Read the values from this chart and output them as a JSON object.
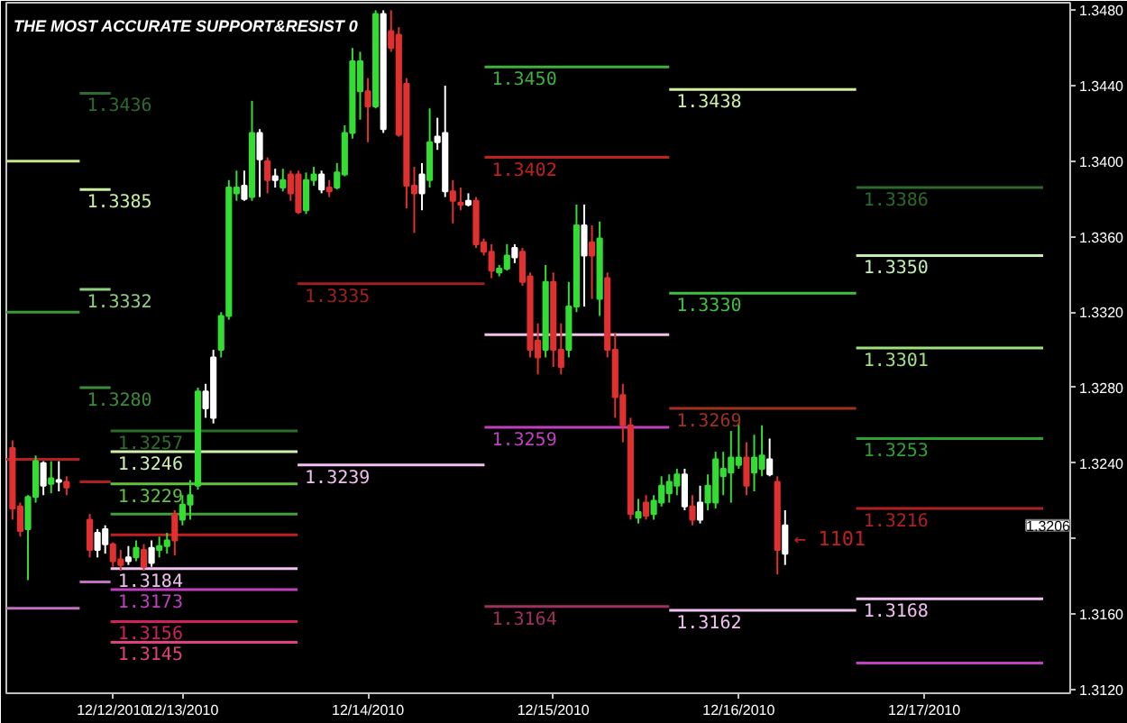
{
  "chart_data": {
    "type": "candlestick",
    "title": "THE MOST ACCURATE SUPPORT&RESIST 0",
    "xlim": [
      "2010-12-12T01:12",
      "2010-12-17T18:54"
    ],
    "ylim": [
      1.3118,
      1.3484
    ],
    "xticks": [
      {
        "value": "2010-12-12T15:00",
        "label": "12/12/2010"
      },
      {
        "value": "2010-12-13T00:00",
        "label": "12/13/2010"
      },
      {
        "value": "2010-12-14T00:00",
        "label": "12/14/2010"
      },
      {
        "value": "2010-12-15T00:00",
        "label": "12/15/2010"
      },
      {
        "value": "2010-12-16T00:00",
        "label": "12/16/2010"
      },
      {
        "value": "2010-12-17T00:00",
        "label": "12/17/2010"
      }
    ],
    "yticks": [
      {
        "value": 1.312,
        "label": "1.3120"
      },
      {
        "value": 1.316,
        "label": "1.3160"
      },
      {
        "value": 1.32,
        "label": null
      },
      {
        "value": 1.324,
        "label": "1.3240"
      },
      {
        "value": 1.328,
        "label": "1.3280"
      },
      {
        "value": 1.332,
        "label": "1.3320"
      },
      {
        "value": 1.336,
        "label": "1.3360"
      },
      {
        "value": 1.34,
        "label": "1.3400"
      },
      {
        "value": 1.344,
        "label": "1.3440"
      },
      {
        "value": 1.348,
        "label": "1.3480"
      }
    ],
    "x": [
      "2010-12-12T02:00",
      "2010-12-12T03:00",
      "2010-12-12T04:00",
      "2010-12-12T05:00",
      "2010-12-12T06:00",
      "2010-12-12T07:00",
      "2010-12-12T08:00",
      "2010-12-12T09:00",
      "2010-12-12T12:00",
      "2010-12-12T13:00",
      "2010-12-12T14:00",
      "2010-12-12T15:00",
      "2010-12-12T16:00",
      "2010-12-12T17:00",
      "2010-12-12T18:00",
      "2010-12-12T19:00",
      "2010-12-12T20:00",
      "2010-12-12T21:00",
      "2010-12-12T22:00",
      "2010-12-12T23:00",
      "2010-12-13T00:00",
      "2010-12-13T01:00",
      "2010-12-13T02:00",
      "2010-12-13T03:00",
      "2010-12-13T04:00",
      "2010-12-13T05:00",
      "2010-12-13T06:00",
      "2010-12-13T07:00",
      "2010-12-13T08:00",
      "2010-12-13T09:00",
      "2010-12-13T10:00",
      "2010-12-13T11:00",
      "2010-12-13T12:00",
      "2010-12-13T13:00",
      "2010-12-13T14:00",
      "2010-12-13T15:00",
      "2010-12-13T16:00",
      "2010-12-13T17:00",
      "2010-12-13T18:00",
      "2010-12-13T19:00",
      "2010-12-13T20:00",
      "2010-12-13T21:00",
      "2010-12-13T22:00",
      "2010-12-13T23:00",
      "2010-12-14T00:00",
      "2010-12-14T01:00",
      "2010-12-14T02:00",
      "2010-12-14T03:00",
      "2010-12-14T04:00",
      "2010-12-14T05:00",
      "2010-12-14T06:00",
      "2010-12-14T07:00",
      "2010-12-14T08:00",
      "2010-12-14T09:00",
      "2010-12-14T10:00",
      "2010-12-14T11:00",
      "2010-12-14T12:00",
      "2010-12-14T13:00",
      "2010-12-14T14:00",
      "2010-12-14T15:00",
      "2010-12-14T16:00",
      "2010-12-14T17:00",
      "2010-12-14T18:00",
      "2010-12-14T19:00",
      "2010-12-14T20:00",
      "2010-12-14T21:00",
      "2010-12-14T22:00",
      "2010-12-14T23:00",
      "2010-12-15T00:00",
      "2010-12-15T01:00",
      "2010-12-15T02:00",
      "2010-12-15T03:00",
      "2010-12-15T04:00",
      "2010-12-15T05:00",
      "2010-12-15T06:00",
      "2010-12-15T07:00",
      "2010-12-15T08:00",
      "2010-12-15T09:00",
      "2010-12-15T10:00",
      "2010-12-15T11:00",
      "2010-12-15T12:00",
      "2010-12-15T13:00",
      "2010-12-15T14:00",
      "2010-12-15T15:00",
      "2010-12-15T16:00",
      "2010-12-15T17:00",
      "2010-12-15T18:00",
      "2010-12-15T19:00",
      "2010-12-15T20:00",
      "2010-12-15T21:00",
      "2010-12-15T22:00",
      "2010-12-15T23:00",
      "2010-12-16T00:00",
      "2010-12-16T01:00",
      "2010-12-16T02:00",
      "2010-12-16T03:00",
      "2010-12-16T04:00",
      "2010-12-16T05:00",
      "2010-12-16T06:00"
    ],
    "ohlc": [
      [
        1.3248,
        1.3252,
        1.321,
        1.3216
      ],
      [
        1.3217,
        1.3219,
        1.3201,
        1.3204
      ],
      [
        1.3205,
        1.3223,
        1.3178,
        1.3222
      ],
      [
        1.3222,
        1.3244,
        1.3219,
        1.3241
      ],
      [
        1.3228,
        1.3241,
        1.3223,
        1.324
      ],
      [
        1.3229,
        1.3241,
        1.3224,
        1.3232
      ],
      [
        1.323,
        1.3241,
        1.3225,
        1.3231
      ],
      [
        1.323,
        1.3233,
        1.3223,
        1.3227
      ],
      [
        1.321,
        1.3213,
        1.319,
        1.3194
      ],
      [
        1.3194,
        1.3205,
        1.319,
        1.3203
      ],
      [
        1.3197,
        1.3207,
        1.3192,
        1.3205
      ],
      [
        1.3197,
        1.3198,
        1.3185,
        1.3188
      ],
      [
        1.3189,
        1.3194,
        1.3183,
        1.3186
      ],
      [
        1.3188,
        1.3196,
        1.3186,
        1.319
      ],
      [
        1.319,
        1.3199,
        1.3188,
        1.3195
      ],
      [
        1.3194,
        1.3197,
        1.3183,
        1.3185
      ],
      [
        1.3187,
        1.3199,
        1.3185,
        1.3195
      ],
      [
        1.3194,
        1.3201,
        1.319,
        1.3196
      ],
      [
        1.3196,
        1.3203,
        1.3192,
        1.3199
      ],
      [
        1.3213,
        1.3215,
        1.3191,
        1.3199
      ],
      [
        1.321,
        1.3223,
        1.3207,
        1.3218
      ],
      [
        1.3218,
        1.3231,
        1.321,
        1.3223
      ],
      [
        1.3228,
        1.328,
        1.3226,
        1.3278
      ],
      [
        1.3269,
        1.3282,
        1.3264,
        1.3278
      ],
      [
        1.3264,
        1.33,
        1.3261,
        1.3296
      ],
      [
        1.33,
        1.332,
        1.3296,
        1.3318
      ],
      [
        1.3318,
        1.339,
        1.3316,
        1.3386
      ],
      [
        1.3383,
        1.3395,
        1.3379,
        1.3386
      ],
      [
        1.338,
        1.3395,
        1.3379,
        1.3387
      ],
      [
        1.3381,
        1.3432,
        1.3379,
        1.3415
      ],
      [
        1.3401,
        1.3417,
        1.3381,
        1.3415
      ],
      [
        1.34,
        1.3402,
        1.3383,
        1.339
      ],
      [
        1.339,
        1.3396,
        1.3386,
        1.3392
      ],
      [
        1.3386,
        1.3396,
        1.3384,
        1.339
      ],
      [
        1.3393,
        1.3395,
        1.3379,
        1.3383
      ],
      [
        1.3393,
        1.3395,
        1.3372,
        1.3373
      ],
      [
        1.3374,
        1.3394,
        1.3372,
        1.339
      ],
      [
        1.339,
        1.3397,
        1.3387,
        1.3393
      ],
      [
        1.3385,
        1.3395,
        1.3383,
        1.3393
      ],
      [
        1.3386,
        1.339,
        1.3381,
        1.3384
      ],
      [
        1.3386,
        1.3399,
        1.3385,
        1.3394
      ],
      [
        1.3393,
        1.3419,
        1.3392,
        1.3415
      ],
      [
        1.3415,
        1.346,
        1.3412,
        1.3453
      ],
      [
        1.3437,
        1.3458,
        1.3422,
        1.3453
      ],
      [
        1.3437,
        1.3444,
        1.341,
        1.3429
      ],
      [
        1.3429,
        1.348,
        1.3428,
        1.3478
      ],
      [
        1.3417,
        1.348,
        1.3415,
        1.3478
      ],
      [
        1.3469,
        1.348,
        1.3458,
        1.346
      ],
      [
        1.3467,
        1.3471,
        1.3413,
        1.3414
      ],
      [
        1.3441,
        1.3444,
        1.3375,
        1.3387
      ],
      [
        1.3387,
        1.3397,
        1.3362,
        1.3383
      ],
      [
        1.3383,
        1.3399,
        1.3374,
        1.3393
      ],
      [
        1.339,
        1.3428,
        1.3386,
        1.341
      ],
      [
        1.341,
        1.3423,
        1.3406,
        1.3413
      ],
      [
        1.3384,
        1.344,
        1.3381,
        1.3415
      ],
      [
        1.3384,
        1.339,
        1.3367,
        1.3379
      ],
      [
        1.3378,
        1.3386,
        1.3374,
        1.3377
      ],
      [
        1.3377,
        1.3383,
        1.3376,
        1.3379
      ],
      [
        1.3379,
        1.3381,
        1.3354,
        1.3356
      ],
      [
        1.3357,
        1.3359,
        1.335,
        1.3352
      ],
      [
        1.3352,
        1.3356,
        1.3338,
        1.3342
      ],
      [
        1.3341,
        1.3345,
        1.3339,
        1.3343
      ],
      [
        1.3343,
        1.3356,
        1.3342,
        1.335
      ],
      [
        1.3349,
        1.3356,
        1.3346,
        1.3354
      ],
      [
        1.3352,
        1.3354,
        1.3334,
        1.3336
      ],
      [
        1.3339,
        1.3341,
        1.3296,
        1.33
      ],
      [
        1.3305,
        1.3314,
        1.3287,
        1.3296
      ],
      [
        1.33,
        1.3345,
        1.3296,
        1.3336
      ],
      [
        1.3336,
        1.3341,
        1.3291,
        1.33
      ],
      [
        1.33,
        1.3314,
        1.3287,
        1.3291
      ],
      [
        1.33,
        1.3336,
        1.3296,
        1.3323
      ],
      [
        1.3323,
        1.3377,
        1.332,
        1.3366
      ],
      [
        1.335,
        1.3377,
        1.3323,
        1.3366
      ],
      [
        1.3357,
        1.3366,
        1.3327,
        1.335
      ],
      [
        1.3327,
        1.3368,
        1.3318,
        1.3359
      ],
      [
        1.3338,
        1.3341,
        1.3296,
        1.33
      ],
      [
        1.33,
        1.3309,
        1.3264,
        1.3275
      ],
      [
        1.3276,
        1.3282,
        1.3251,
        1.326
      ],
      [
        1.326,
        1.3264,
        1.321,
        1.3213
      ],
      [
        1.3211,
        1.3221,
        1.3208,
        1.3214
      ],
      [
        1.3219,
        1.3223,
        1.321,
        1.3212
      ],
      [
        1.3213,
        1.3223,
        1.321,
        1.322
      ],
      [
        1.3219,
        1.3233,
        1.3217,
        1.3228
      ],
      [
        1.3224,
        1.3234,
        1.3219,
        1.323
      ],
      [
        1.3228,
        1.3237,
        1.3223,
        1.3234
      ],
      [
        1.3217,
        1.3237,
        1.3215,
        1.3234
      ],
      [
        1.3217,
        1.3223,
        1.3207,
        1.321
      ],
      [
        1.321,
        1.3228,
        1.3208,
        1.3219
      ],
      [
        1.3219,
        1.3234,
        1.3215,
        1.3228
      ],
      [
        1.3219,
        1.3246,
        1.3216,
        1.3242
      ],
      [
        1.3233,
        1.3246,
        1.3223,
        1.3237
      ],
      [
        1.3235,
        1.3257,
        1.3219,
        1.3243
      ],
      [
        1.3239,
        1.3261,
        1.3237,
        1.3243
      ],
      [
        1.3243,
        1.3251,
        1.3223,
        1.3228
      ],
      [
        1.3235,
        1.3255,
        1.3225,
        1.3243
      ],
      [
        1.3237,
        1.326,
        1.3233,
        1.3244
      ],
      [
        1.3234,
        1.3253,
        1.3233,
        1.3242
      ],
      [
        1.323,
        1.3233,
        1.3181,
        1.3194
      ],
      [
        1.3192,
        1.3215,
        1.3186,
        1.3207
      ]
    ],
    "colors": [
      "#e03030",
      "#e03030",
      "#33dd33",
      "#33dd33",
      "#ffffff",
      "#33dd33",
      "#ffffff",
      "#e03030",
      "#e03030",
      "#ffffff",
      "#ffffff",
      "#e03030",
      "#e03030",
      "#ffffff",
      "#33dd33",
      "#e03030",
      "#ffffff",
      "#33dd33",
      "#33dd33",
      "#e03030",
      "#33dd33",
      "#33dd33",
      "#33dd33",
      "#ffffff",
      "#ffffff",
      "#33dd33",
      "#33dd33",
      "#33dd33",
      "#ffffff",
      "#33dd33",
      "#ffffff",
      "#e03030",
      "#ffffff",
      "#33dd33",
      "#e03030",
      "#e03030",
      "#33dd33",
      "#33dd33",
      "#ffffff",
      "#e03030",
      "#33dd33",
      "#33dd33",
      "#33dd33",
      "#33dd33",
      "#e03030",
      "#33dd33",
      "#ffffff",
      "#e03030",
      "#e03030",
      "#e03030",
      "#e03030",
      "#ffffff",
      "#33dd33",
      "#ffffff",
      "#ffffff",
      "#e03030",
      "#e03030",
      "#ffffff",
      "#e03030",
      "#e03030",
      "#e03030",
      "#33dd33",
      "#33dd33",
      "#ffffff",
      "#e03030",
      "#e03030",
      "#e03030",
      "#33dd33",
      "#e03030",
      "#e03030",
      "#33dd33",
      "#33dd33",
      "#ffffff",
      "#e03030",
      "#33dd33",
      "#e03030",
      "#e03030",
      "#e03030",
      "#e03030",
      "#33dd33",
      "#e03030",
      "#33dd33",
      "#33dd33",
      "#33dd33",
      "#33dd33",
      "#ffffff",
      "#e03030",
      "#ffffff",
      "#33dd33",
      "#33dd33",
      "#33dd33",
      "#33dd33",
      "#33dd33",
      "#e03030",
      "#33dd33",
      "#33dd33",
      "#ffffff",
      "#e03030",
      "#ffffff"
    ],
    "series": [
      {
        "type": "line",
        "color": "#c8e68c",
        "x": [
          "2010-12-12T01:12",
          "2010-12-12T10:42"
        ],
        "values": [
          1.34,
          1.34
        ]
      },
      {
        "type": "line",
        "color": "#3a9a3a",
        "x": [
          "2010-12-12T01:12",
          "2010-12-12T10:42"
        ],
        "values": [
          1.332,
          1.332
        ]
      },
      {
        "type": "line",
        "color": "#b02020",
        "x": [
          "2010-12-12T01:12",
          "2010-12-12T10:42"
        ],
        "values": [
          1.3242,
          1.3242
        ]
      },
      {
        "type": "line",
        "color": "#c070c0",
        "x": [
          "2010-12-12T01:12",
          "2010-12-12T10:42"
        ],
        "values": [
          1.3163,
          1.3163
        ]
      },
      {
        "type": "line",
        "name": "1.3436",
        "color": "#2e6b2e",
        "x": [
          "2010-12-12T10:42",
          "2010-12-12T14:42"
        ],
        "values": [
          1.3436,
          1.3436
        ]
      },
      {
        "type": "line",
        "name": "1.3385",
        "color": "#c8f0a0",
        "x": [
          "2010-12-12T10:42",
          "2010-12-12T14:42"
        ],
        "values": [
          1.3385,
          1.3385
        ]
      },
      {
        "type": "line",
        "name": "1.3332",
        "color": "#8fd080",
        "x": [
          "2010-12-12T10:42",
          "2010-12-12T14:42"
        ],
        "values": [
          1.3332,
          1.3332
        ]
      },
      {
        "type": "line",
        "name": "1.3280",
        "color": "#3c8c3c",
        "x": [
          "2010-12-12T10:42",
          "2010-12-12T14:42"
        ],
        "values": [
          1.328,
          1.328
        ]
      },
      {
        "type": "line",
        "color": "#b02020",
        "x": [
          "2010-12-12T10:42",
          "2010-12-12T14:42"
        ],
        "values": [
          1.323,
          1.323
        ]
      },
      {
        "type": "line",
        "color": "#c070c0",
        "x": [
          "2010-12-12T10:42",
          "2010-12-12T14:42"
        ],
        "values": [
          1.3177,
          1.3177
        ]
      },
      {
        "type": "line",
        "name": "1.3257",
        "color": "#2a6e2a",
        "x": [
          "2010-12-12T14:42",
          "2010-12-13T14:54"
        ],
        "values": [
          1.3257,
          1.3257
        ]
      },
      {
        "type": "line",
        "name": "1.3246",
        "color": "#d0f0b0",
        "x": [
          "2010-12-12T14:42",
          "2010-12-13T14:54"
        ],
        "values": [
          1.3246,
          1.3246
        ]
      },
      {
        "type": "line",
        "name": "1.3229",
        "color": "#60c040",
        "x": [
          "2010-12-12T14:42",
          "2010-12-13T14:54"
        ],
        "values": [
          1.3229,
          1.3229
        ]
      },
      {
        "type": "line",
        "color": "#40a040",
        "x": [
          "2010-12-12T14:42",
          "2010-12-13T14:54"
        ],
        "values": [
          1.3213,
          1.3213
        ]
      },
      {
        "type": "line",
        "color": "#c02020",
        "x": [
          "2010-12-12T14:42",
          "2010-12-13T14:54"
        ],
        "values": [
          1.3202,
          1.3202
        ]
      },
      {
        "type": "line",
        "name": "1.3184",
        "color": "#f0c0f0",
        "x": [
          "2010-12-12T14:42",
          "2010-12-13T14:54"
        ],
        "values": [
          1.3184,
          1.3184
        ]
      },
      {
        "type": "line",
        "name": "1.3173",
        "color": "#c040c0",
        "x": [
          "2010-12-12T14:42",
          "2010-12-13T14:54"
        ],
        "values": [
          1.3173,
          1.3173
        ]
      },
      {
        "type": "line",
        "name": "1.3156",
        "color": "#d02060",
        "x": [
          "2010-12-12T14:42",
          "2010-12-13T14:54"
        ],
        "values": [
          1.3156,
          1.3156
        ]
      },
      {
        "type": "line",
        "name": "1.3145",
        "color": "#e04080",
        "x": [
          "2010-12-12T14:42",
          "2010-12-13T14:54"
        ],
        "values": [
          1.3145,
          1.3145
        ]
      },
      {
        "type": "line",
        "name": "1.3335",
        "color": "#a02020",
        "x": [
          "2010-12-13T14:54",
          "2010-12-14T15:06"
        ],
        "values": [
          1.3335,
          1.3335
        ]
      },
      {
        "type": "line",
        "name": "1.3239",
        "color": "#f0c0f0",
        "x": [
          "2010-12-13T14:54",
          "2010-12-14T15:06"
        ],
        "values": [
          1.3239,
          1.3239
        ]
      },
      {
        "type": "line",
        "name": "1.3450",
        "color": "#40b040",
        "x": [
          "2010-12-14T15:06",
          "2010-12-15T15:00"
        ],
        "values": [
          1.345,
          1.345
        ]
      },
      {
        "type": "line",
        "name": "1.3402",
        "color": "#c02020",
        "x": [
          "2010-12-14T15:06",
          "2010-12-15T15:00"
        ],
        "values": [
          1.3402,
          1.3402
        ]
      },
      {
        "type": "line",
        "color": "#f0c0f0",
        "x": [
          "2010-12-14T15:06",
          "2010-12-15T15:00"
        ],
        "values": [
          1.3308,
          1.3308
        ]
      },
      {
        "type": "line",
        "name": "1.3259",
        "color": "#c040c0",
        "x": [
          "2010-12-14T15:06",
          "2010-12-15T15:00"
        ],
        "values": [
          1.3259,
          1.3259
        ]
      },
      {
        "type": "line",
        "name": "1.3164",
        "color": "#a03060",
        "x": [
          "2010-12-14T15:06",
          "2010-12-15T15:00"
        ],
        "values": [
          1.3164,
          1.3164
        ]
      },
      {
        "type": "line",
        "name": "1.3438",
        "color": "#d0f0a0",
        "x": [
          "2010-12-15T15:00",
          "2010-12-16T15:12"
        ],
        "values": [
          1.3438,
          1.3438
        ]
      },
      {
        "type": "line",
        "name": "1.3330",
        "color": "#40c040",
        "x": [
          "2010-12-15T15:00",
          "2010-12-16T15:12"
        ],
        "values": [
          1.333,
          1.333
        ]
      },
      {
        "type": "line",
        "name": "1.3269",
        "color": "#a03020",
        "x": [
          "2010-12-15T15:00",
          "2010-12-16T15:12"
        ],
        "values": [
          1.3269,
          1.3269
        ]
      },
      {
        "type": "line",
        "name": "1.3162",
        "color": "#f0c0f0",
        "x": [
          "2010-12-15T15:00",
          "2010-12-16T15:12"
        ],
        "values": [
          1.3162,
          1.3162
        ]
      },
      {
        "type": "line",
        "name": "1.3386",
        "color": "#2a6a2a",
        "x": [
          "2010-12-16T15:12",
          "2010-12-17T15:24"
        ],
        "values": [
          1.3386,
          1.3386
        ]
      },
      {
        "type": "line",
        "name": "1.3350",
        "color": "#c0f0b0",
        "x": [
          "2010-12-16T15:12",
          "2010-12-17T15:24"
        ],
        "values": [
          1.335,
          1.335
        ]
      },
      {
        "type": "line",
        "name": "1.3301",
        "color": "#a0e080",
        "x": [
          "2010-12-16T15:12",
          "2010-12-17T15:24"
        ],
        "values": [
          1.3301,
          1.3301
        ]
      },
      {
        "type": "line",
        "name": "1.3253",
        "color": "#30a030",
        "x": [
          "2010-12-16T15:12",
          "2010-12-17T15:24"
        ],
        "values": [
          1.3253,
          1.3253
        ]
      },
      {
        "type": "line",
        "name": "1.3216",
        "color": "#b02020",
        "x": [
          "2010-12-16T15:12",
          "2010-12-17T15:24"
        ],
        "values": [
          1.3216,
          1.3216
        ]
      },
      {
        "type": "line",
        "name": "1.3168",
        "color": "#f0c0f0",
        "x": [
          "2010-12-16T15:12",
          "2010-12-17T15:24"
        ],
        "values": [
          1.3168,
          1.3168
        ]
      },
      {
        "type": "line",
        "color": "#c040c0",
        "x": [
          "2010-12-16T15:12",
          "2010-12-17T15:24"
        ],
        "values": [
          1.3134,
          1.3134
        ]
      }
    ],
    "annotations": [
      "← 1101",
      "1.3206"
    ]
  }
}
